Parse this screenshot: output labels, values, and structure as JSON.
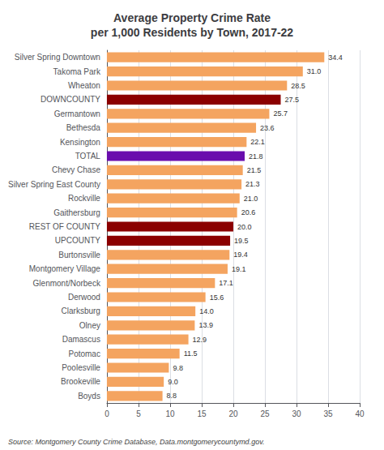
{
  "chart_data": {
    "type": "bar",
    "orientation": "horizontal",
    "title": "Average Property Crime Rate\nper 1,000 Residents by Town, 2017-22",
    "categories": [
      "Silver Spring Downtown",
      "Takoma Park",
      "Wheaton",
      "DOWNCOUNTY",
      "Germantown",
      "Bethesda",
      "Kensington",
      "TOTAL",
      "Chevy Chase",
      "Silver Spring East County",
      "Rockville",
      "Gaithersburg",
      "REST OF COUNTY",
      "UPCOUNTY",
      "Burtonsville",
      "Montgomery Village",
      "Glenmont/Norbeck",
      "Derwood",
      "Clarksburg",
      "Olney",
      "Damascus",
      "Potomac",
      "Poolesville",
      "Brookeville",
      "Boyds"
    ],
    "values": [
      34.4,
      31.0,
      28.5,
      27.5,
      25.7,
      23.6,
      22.1,
      21.8,
      21.5,
      21.3,
      21.0,
      20.6,
      20.0,
      19.5,
      19.4,
      19.1,
      17.1,
      15.6,
      14.0,
      13.9,
      12.9,
      11.5,
      9.8,
      9.0,
      8.8
    ],
    "value_labels": [
      "34.4",
      "31.0",
      "28.5",
      "27.5",
      "25.7",
      "23.6",
      "22.1",
      "21.8",
      "21.5",
      "21.3",
      "21.0",
      "20.6",
      "20.0",
      "19.5",
      "19.4",
      "19.1",
      "17.1",
      "15.6",
      "14.0",
      "13.9",
      "12.9",
      "11.5",
      "9.8",
      "9.0",
      "8.8"
    ],
    "colors": [
      "#F4A460",
      "#F4A460",
      "#F4A460",
      "#8B0000",
      "#F4A460",
      "#F4A460",
      "#F4A460",
      "#6A0DAD",
      "#F4A460",
      "#F4A460",
      "#F4A460",
      "#F4A460",
      "#8B0000",
      "#8B0000",
      "#F4A460",
      "#F4A460",
      "#F4A460",
      "#F4A460",
      "#F4A460",
      "#F4A460",
      "#F4A460",
      "#F4A460",
      "#F4A460",
      "#F4A460",
      "#F4A460"
    ],
    "xlim": [
      0,
      40
    ],
    "xticks": [
      0,
      5,
      10,
      15,
      20,
      25,
      30,
      35,
      40
    ],
    "grid": true,
    "data_labels": true,
    "annotations": [
      "Source: Montgomery County Crime Database, Data.montgomerycountymd.gov."
    ]
  }
}
